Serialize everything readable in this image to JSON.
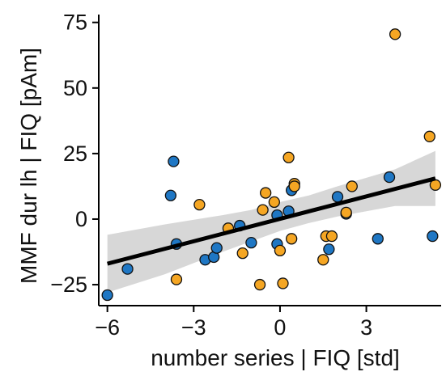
{
  "chart_data": {
    "type": "scatter",
    "title": "",
    "xlabel": "number series | FIQ [std]",
    "ylabel": "MMF dur lh | FIQ [pAm]",
    "xlim": [
      -6.3,
      5.6
    ],
    "ylim": [
      -33,
      78
    ],
    "xticks": [
      -6,
      -3,
      0,
      3
    ],
    "xtick_labels": [
      "−6",
      "−3",
      "0",
      "3"
    ],
    "yticks": [
      -25,
      0,
      25,
      50,
      75
    ],
    "ytick_labels": [
      "−25",
      "0",
      "25",
      "50",
      "75"
    ],
    "grid": false,
    "legend": "none",
    "colors": {
      "blue": "#1f77c4",
      "orange": "#f5a623",
      "line": "#000000",
      "band": "#bdbdbd"
    },
    "series": [
      {
        "color": "blue",
        "points": [
          [
            -6.0,
            -29.0
          ],
          [
            -5.3,
            -19.0
          ],
          [
            -3.8,
            9.0
          ],
          [
            -3.7,
            22.0
          ],
          [
            -3.6,
            -9.5
          ],
          [
            -2.6,
            -15.5
          ],
          [
            -2.3,
            -14.5
          ],
          [
            -2.2,
            -11.0
          ],
          [
            -1.4,
            -2.5
          ],
          [
            -1.0,
            -9.0
          ],
          [
            -0.1,
            -9.5
          ],
          [
            -0.1,
            1.5
          ],
          [
            0.3,
            3.0
          ],
          [
            0.4,
            11.0
          ],
          [
            1.7,
            -11.5
          ],
          [
            2.0,
            8.5
          ],
          [
            2.3,
            2.0
          ],
          [
            3.4,
            -7.5
          ],
          [
            3.8,
            16.0
          ],
          [
            5.3,
            -6.5
          ]
        ]
      },
      {
        "color": "orange",
        "points": [
          [
            -3.6,
            -23.0
          ],
          [
            -2.8,
            5.5
          ],
          [
            -1.8,
            -3.5
          ],
          [
            -1.3,
            -13.0
          ],
          [
            -0.7,
            -25.0
          ],
          [
            -0.6,
            3.5
          ],
          [
            -0.5,
            10.0
          ],
          [
            -0.2,
            6.5
          ],
          [
            0.0,
            -12.0
          ],
          [
            0.1,
            -24.5
          ],
          [
            0.3,
            23.5
          ],
          [
            0.4,
            -7.5
          ],
          [
            0.5,
            13.5
          ],
          [
            0.5,
            12.5
          ],
          [
            1.5,
            -15.5
          ],
          [
            1.6,
            -6.5
          ],
          [
            1.8,
            -6.5
          ],
          [
            2.3,
            2.5
          ],
          [
            2.5,
            12.5
          ],
          [
            4.0,
            70.5
          ],
          [
            5.2,
            31.5
          ],
          [
            5.4,
            13.0
          ]
        ]
      }
    ],
    "fit_line": {
      "x": [
        -6.0,
        5.4
      ],
      "y": [
        -17.0,
        15.5
      ]
    },
    "confidence_band": {
      "x": [
        -6.0,
        -4.0,
        -2.0,
        -1.0,
        0.0,
        1.0,
        2.0,
        4.0,
        5.4
      ],
      "upper": [
        -6.0,
        -2.0,
        1.5,
        3.5,
        6.5,
        9.0,
        12.5,
        19.0,
        26.0
      ],
      "lower": [
        -28.0,
        -21.0,
        -12.5,
        -8.5,
        -4.5,
        -1.5,
        1.0,
        5.0,
        5.0
      ]
    }
  }
}
